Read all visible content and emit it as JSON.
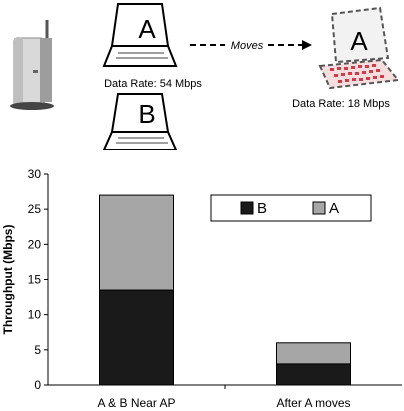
{
  "scene": {
    "laptop_a_label": "A",
    "laptop_b_label": "B",
    "laptop_a_moved_label": "A",
    "moves_label": "Moves",
    "rate_before": "Data Rate: 54 Mbps",
    "rate_after": "Data Rate: 18 Mbps",
    "icons": [
      "access-point-icon",
      "laptop-icon",
      "laptop-icon",
      "laptop-icon"
    ]
  },
  "chart_data": {
    "type": "bar",
    "stacked": true,
    "categories": [
      "A & B Near AP",
      "After A moves"
    ],
    "series": [
      {
        "name": "B",
        "values": [
          13.5,
          3.0
        ],
        "color": "#1a1a1a"
      },
      {
        "name": "A",
        "values": [
          13.5,
          3.0
        ],
        "color": "#a6a6a6"
      }
    ],
    "xlabel": "",
    "ylabel": "Throughput (Mbps)",
    "ylim": [
      0,
      30
    ],
    "yticks": [
      0,
      5,
      10,
      15,
      20,
      25,
      30
    ],
    "grid": false,
    "legend": "top-right"
  }
}
